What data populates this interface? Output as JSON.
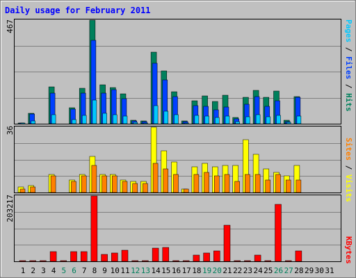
{
  "title": "Daily usage for February 2011",
  "colors": {
    "background": "#c0c0c0",
    "title": "#0000ff",
    "hits": "#00805c",
    "files": "#0040ff",
    "pages": "#00c8ff",
    "visits": "#ffff00",
    "sites": "#ff8000",
    "kbytes": "#ff0000",
    "weekend_day_label": "#00805c",
    "weekday_label": "#000000",
    "gridline": "#808080",
    "frame": "#808080"
  },
  "chart_data": [
    {
      "type": "bar",
      "panel": "hits-files-pages",
      "ymax_label": "467",
      "ymax": 467,
      "legend": [
        "Pages",
        "Files",
        "Hits"
      ],
      "grid": true,
      "x": [
        1,
        2,
        3,
        4,
        5,
        6,
        7,
        8,
        9,
        10,
        11,
        12,
        13,
        14,
        15,
        16,
        17,
        18,
        19,
        20,
        21,
        22,
        23,
        24,
        25,
        26,
        27,
        28,
        29,
        30,
        31
      ],
      "series": [
        {
          "name": "Hits",
          "values": [
            3,
            48,
            0,
            165,
            0,
            71,
            159,
            467,
            175,
            164,
            135,
            16,
            11,
            322,
            237,
            145,
            12,
            104,
            124,
            100,
            130,
            28,
            119,
            150,
            120,
            146,
            16,
            123,
            0,
            0,
            0
          ]
        },
        {
          "name": "Files",
          "values": [
            2,
            43,
            0,
            137,
            0,
            65,
            138,
            375,
            138,
            153,
            112,
            12,
            8,
            274,
            196,
            122,
            8,
            80,
            77,
            64,
            76,
            22,
            89,
            122,
            79,
            103,
            10,
            120,
            0,
            0,
            0
          ]
        },
        {
          "name": "Pages",
          "values": [
            1,
            13,
            0,
            42,
            0,
            20,
            38,
            105,
            48,
            40,
            34,
            6,
            4,
            80,
            56,
            42,
            3,
            38,
            35,
            28,
            34,
            10,
            30,
            40,
            30,
            38,
            5,
            35,
            0,
            0,
            0
          ]
        }
      ]
    },
    {
      "type": "bar",
      "panel": "visits-sites",
      "ymax_label": "36",
      "ymax": 36,
      "legend": [
        "Sites",
        "Visits"
      ],
      "grid": true,
      "x": [
        1,
        2,
        3,
        4,
        5,
        6,
        7,
        8,
        9,
        10,
        11,
        12,
        13,
        14,
        15,
        16,
        17,
        18,
        19,
        20,
        21,
        22,
        23,
        24,
        25,
        26,
        27,
        28,
        29,
        30,
        31
      ],
      "series": [
        {
          "name": "Visits",
          "values": [
            3,
            4,
            0,
            10,
            0,
            7,
            10,
            20,
            10,
            10,
            7,
            6,
            6,
            36,
            23,
            17,
            2,
            14,
            16,
            14,
            15,
            15,
            29,
            21,
            13,
            11,
            9,
            15,
            0,
            0,
            0
          ]
        },
        {
          "name": "Sites",
          "values": [
            2,
            3,
            0,
            9,
            0,
            6,
            9,
            15,
            9,
            9,
            6,
            5,
            5,
            16,
            13,
            10,
            2,
            10,
            11,
            9,
            10,
            6,
            10,
            10,
            7,
            10,
            7,
            7,
            0,
            0,
            0
          ]
        }
      ]
    },
    {
      "type": "bar",
      "panel": "kbytes",
      "ymax_label": "203217",
      "ymax": 203217,
      "legend": [
        "KBytes"
      ],
      "grid": true,
      "x": [
        1,
        2,
        3,
        4,
        5,
        6,
        7,
        8,
        9,
        10,
        11,
        12,
        13,
        14,
        15,
        16,
        17,
        18,
        19,
        20,
        21,
        22,
        23,
        24,
        25,
        26,
        27,
        28,
        29,
        30,
        31
      ],
      "series": [
        {
          "name": "KBytes",
          "values": [
            0,
            0,
            0,
            30000,
            0,
            30000,
            30000,
            203217,
            22000,
            26000,
            35000,
            0,
            0,
            40000,
            44000,
            0,
            0,
            20000,
            25000,
            33000,
            113000,
            0,
            0,
            20000,
            0,
            177000,
            0,
            33000,
            0,
            0,
            0
          ]
        }
      ]
    }
  ],
  "x_labels": [
    "1",
    "2",
    "3",
    "4",
    "5",
    "6",
    "7",
    "8",
    "9",
    "10",
    "11",
    "12",
    "13",
    "14",
    "15",
    "16",
    "17",
    "18",
    "19",
    "20",
    "21",
    "22",
    "23",
    "24",
    "25",
    "26",
    "27",
    "28",
    "29",
    "30",
    "31"
  ],
  "weekend_days": [
    5,
    6,
    12,
    13,
    19,
    20,
    26,
    27
  ]
}
